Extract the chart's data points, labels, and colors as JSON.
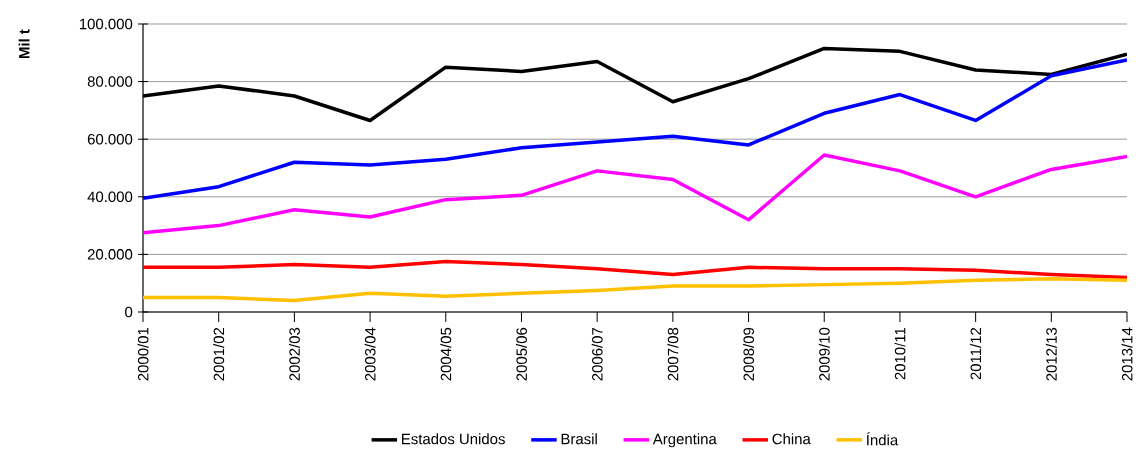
{
  "chart_data": {
    "type": "line",
    "ylabel": "Mil t",
    "categories": [
      "2000/01",
      "2001/02",
      "2002/03",
      "2003/04",
      "2004/05",
      "2005/06",
      "2006/07",
      "2007/08",
      "2008/09",
      "2009/10",
      "2010/11",
      "2011/12",
      "2012/13",
      "2013/14"
    ],
    "series": [
      {
        "name": "Estados Unidos",
        "color": "#000000",
        "values": [
          75000,
          78500,
          75000,
          66500,
          85000,
          83500,
          87000,
          73000,
          81000,
          91500,
          90500,
          84000,
          82500,
          89500
        ]
      },
      {
        "name": "Brasil",
        "color": "#0000ff",
        "values": [
          39500,
          43500,
          52000,
          51000,
          53000,
          57000,
          59000,
          61000,
          58000,
          69000,
          75500,
          66500,
          82000,
          87500
        ]
      },
      {
        "name": "Argentina",
        "color": "#ff00ff",
        "values": [
          27500,
          30000,
          35500,
          33000,
          39000,
          40500,
          49000,
          46000,
          32000,
          54500,
          49000,
          40000,
          49500,
          54000
        ]
      },
      {
        "name": "China",
        "color": "#ff0000",
        "values": [
          15500,
          15500,
          16500,
          15500,
          17500,
          16500,
          15000,
          13000,
          15500,
          15000,
          15000,
          14500,
          13000,
          12000
        ]
      },
      {
        "name": "Índia",
        "color": "#ffc000",
        "values": [
          5000,
          5000,
          4000,
          6500,
          5500,
          6500,
          7500,
          9000,
          9000,
          9500,
          10000,
          11000,
          11500,
          11000
        ]
      }
    ],
    "ylim": [
      0,
      100000
    ],
    "yticks": [
      0,
      {
        "value": 20000,
        "label": "20.000"
      },
      {
        "value": 40000,
        "label": "40.000"
      },
      {
        "value": 60000,
        "label": "60.000"
      },
      {
        "value": 80000,
        "label": "80.000"
      },
      {
        "value": 100000,
        "label": "100.000"
      }
    ],
    "grid": "y",
    "legend": "bottom",
    "marker": "none",
    "line_style": "solid"
  }
}
